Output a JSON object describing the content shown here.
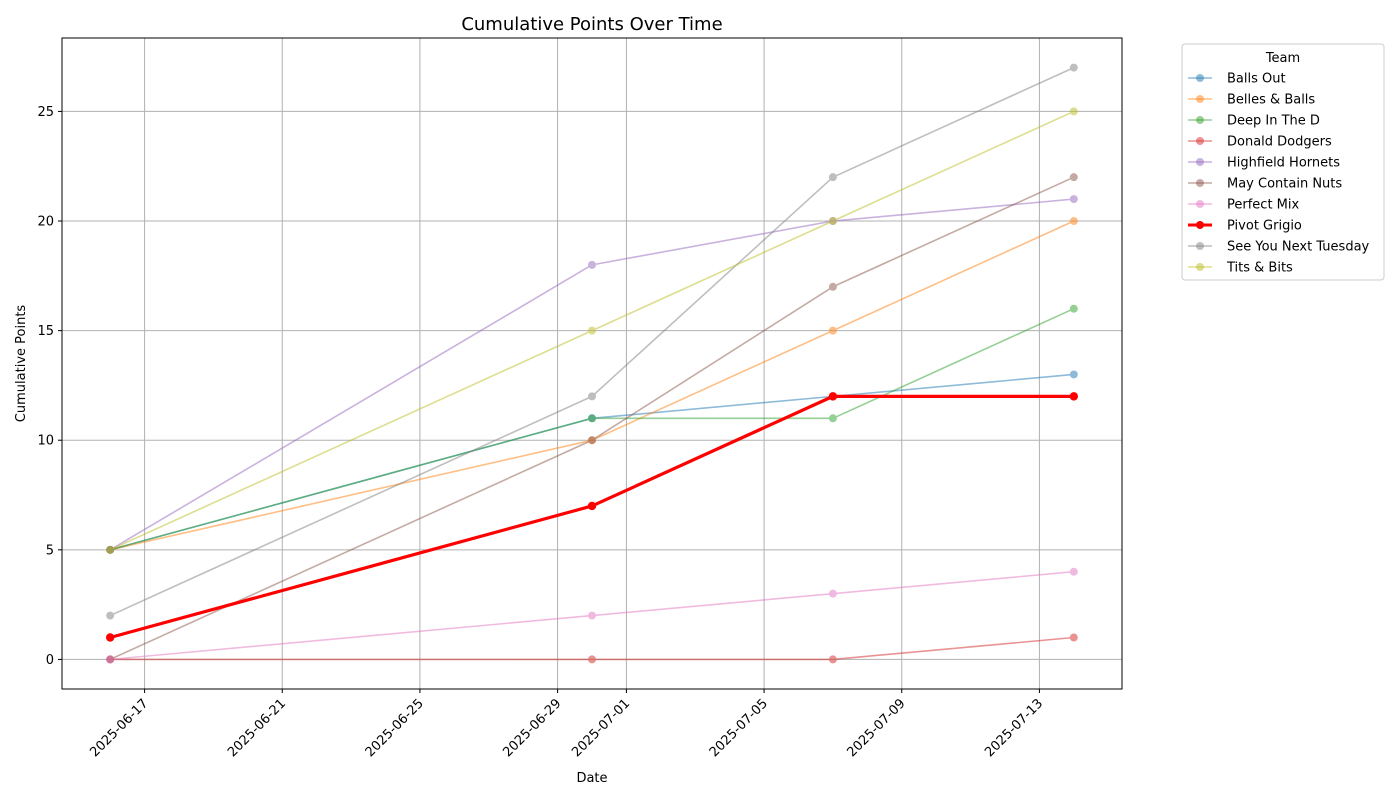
{
  "chart_data": {
    "type": "line",
    "title": "Cumulative Points Over Time",
    "xlabel": "Date",
    "ylabel": "Cumulative Points",
    "x": [
      "2025-06-16",
      "2025-06-30",
      "2025-07-07",
      "2025-07-14"
    ],
    "x_ticks": [
      "2025-06-17",
      "2025-06-21",
      "2025-06-25",
      "2025-06-29",
      "2025-07-01",
      "2025-07-05",
      "2025-07-09",
      "2025-07-13"
    ],
    "xlim": [
      "2025-06-14.6",
      "2025-07-15.4"
    ],
    "ylim": [
      -1.35,
      28.35
    ],
    "y_ticks": [
      0,
      5,
      10,
      15,
      20,
      25
    ],
    "grid": true,
    "legend": {
      "title": "Team",
      "placement": "outside-top-right"
    },
    "series": [
      {
        "name": "Balls Out",
        "color": "#1f77b4",
        "values": [
          5,
          11,
          12,
          13
        ]
      },
      {
        "name": "Belles & Balls",
        "color": "#ff7f0e",
        "values": [
          5,
          10,
          15,
          20
        ]
      },
      {
        "name": "Deep In The D",
        "color": "#2ca02c",
        "values": [
          5,
          11,
          11,
          16
        ]
      },
      {
        "name": "Donald Dodgers",
        "color": "#d62728",
        "values": [
          0,
          0,
          0,
          1
        ]
      },
      {
        "name": "Highfield Hornets",
        "color": "#9467bd",
        "values": [
          5,
          18,
          20,
          21
        ]
      },
      {
        "name": "May Contain Nuts",
        "color": "#8c564b",
        "values": [
          0,
          10,
          17,
          22
        ]
      },
      {
        "name": "Perfect Mix",
        "color": "#e377c2",
        "values": [
          0,
          2,
          3,
          4
        ]
      },
      {
        "name": "Pivot Grigio",
        "color": "#ff0000",
        "highlight": true,
        "values": [
          1,
          7,
          12,
          12
        ]
      },
      {
        "name": "See You Next Tuesday",
        "color": "#7f7f7f",
        "values": [
          2,
          12,
          22,
          27
        ]
      },
      {
        "name": "Tits & Bits",
        "color": "#bcbd22",
        "values": [
          5,
          15,
          20,
          25
        ]
      }
    ]
  }
}
